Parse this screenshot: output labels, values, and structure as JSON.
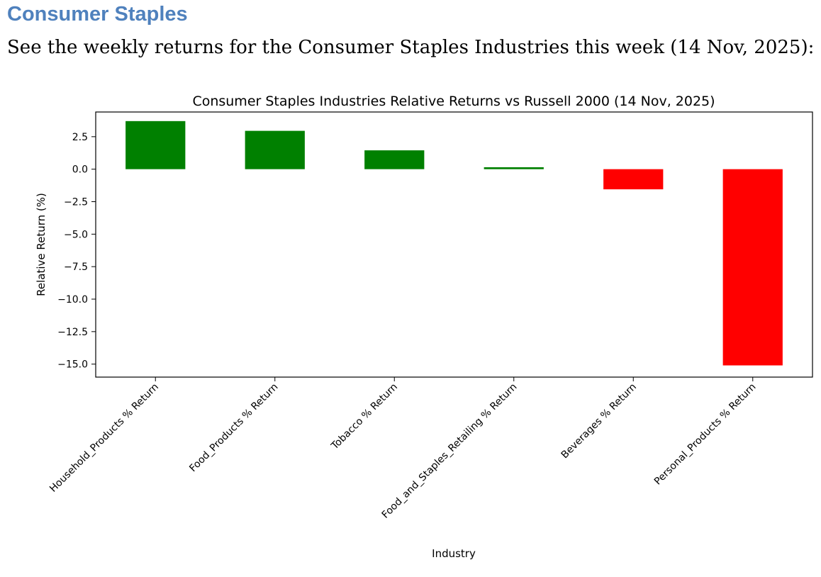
{
  "document": {
    "heading": "Consumer Staples",
    "heading_color": "#4f81bd",
    "intro": "See the weekly returns for the Consumer Staples Industries this week (14 Nov, 2025):"
  },
  "chart_data": {
    "type": "bar",
    "title": "Consumer Staples Industries Relative Returns vs Russell 2000 (14 Nov, 2025)",
    "xlabel": "Industry",
    "ylabel": "Relative Return (%)",
    "categories": [
      "Household_Products % Return",
      "Food_Products % Return",
      "Tobacco % Return",
      "Food_and_Staples_Retailing % Return",
      "Beverages % Return",
      "Personal_Products % Return"
    ],
    "values": [
      3.7,
      2.95,
      1.45,
      0.15,
      -1.55,
      -15.1
    ],
    "ylim": [
      -16.0,
      4.4
    ],
    "yticks": [
      2.5,
      0.0,
      -2.5,
      -5.0,
      -7.5,
      -10.0,
      -12.5,
      -15.0
    ],
    "ytick_labels": [
      "2.5",
      "0.0",
      "−2.5",
      "−5.0",
      "−7.5",
      "−10.0",
      "−12.5",
      "−15.0"
    ],
    "positive_color": "#008000",
    "negative_color": "#ff0000",
    "grid": false,
    "legend": "none"
  }
}
